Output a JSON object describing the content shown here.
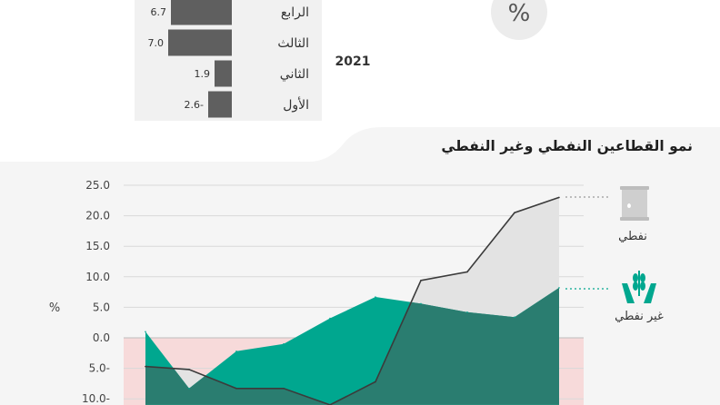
{
  "top": {
    "percent_symbol": "%",
    "year": "2021",
    "quarters": [
      {
        "label": "الرابع",
        "value": 6.7,
        "value_label": "6.7"
      },
      {
        "label": "الثالث",
        "value": 7.0,
        "value_label": "7.0"
      },
      {
        "label": "الثاني",
        "value": 1.9,
        "value_label": "1.9"
      },
      {
        "label": "الأول",
        "value": -2.6,
        "value_label": "2.6-"
      }
    ],
    "colors": {
      "bar": "#5f5f5f",
      "panel": "#f1f1f1"
    }
  },
  "chart_data": {
    "type": "area",
    "title": "نمو القطاعين النفطي وغير النفطي",
    "ylabel": "%",
    "ylim": [
      -11,
      27
    ],
    "y_ticks": [
      25,
      20,
      15,
      10,
      5,
      0,
      -5,
      -10
    ],
    "y_tick_labels": [
      "25.0",
      "20.0",
      "15.0",
      "10.0",
      "5.0",
      "0.0",
      "5.0-",
      "10.0-"
    ],
    "x_count": 10,
    "series": [
      {
        "name": "نفطي",
        "values": [
          -4.7,
          -5.2,
          -8.3,
          -8.3,
          -11.0,
          -7.2,
          9.4,
          10.8,
          20.5,
          23.0
        ]
      },
      {
        "name": "غير نفطي",
        "values": [
          1.0,
          -8.3,
          -2.2,
          -1.0,
          3.2,
          6.7,
          5.6,
          4.2,
          3.4,
          8.2
        ]
      }
    ],
    "colors": {
      "oil_fill": "#e3e3e3",
      "oil_line": "#3b3b3b",
      "nonoil_fill": "#00a78f",
      "overlap_fill": "#2a7d70",
      "negative_band": "#f7dada",
      "icon_oil": "#cfcfcf",
      "icon_nonoil": "#00a78f"
    },
    "grid": true,
    "legend": "right"
  }
}
